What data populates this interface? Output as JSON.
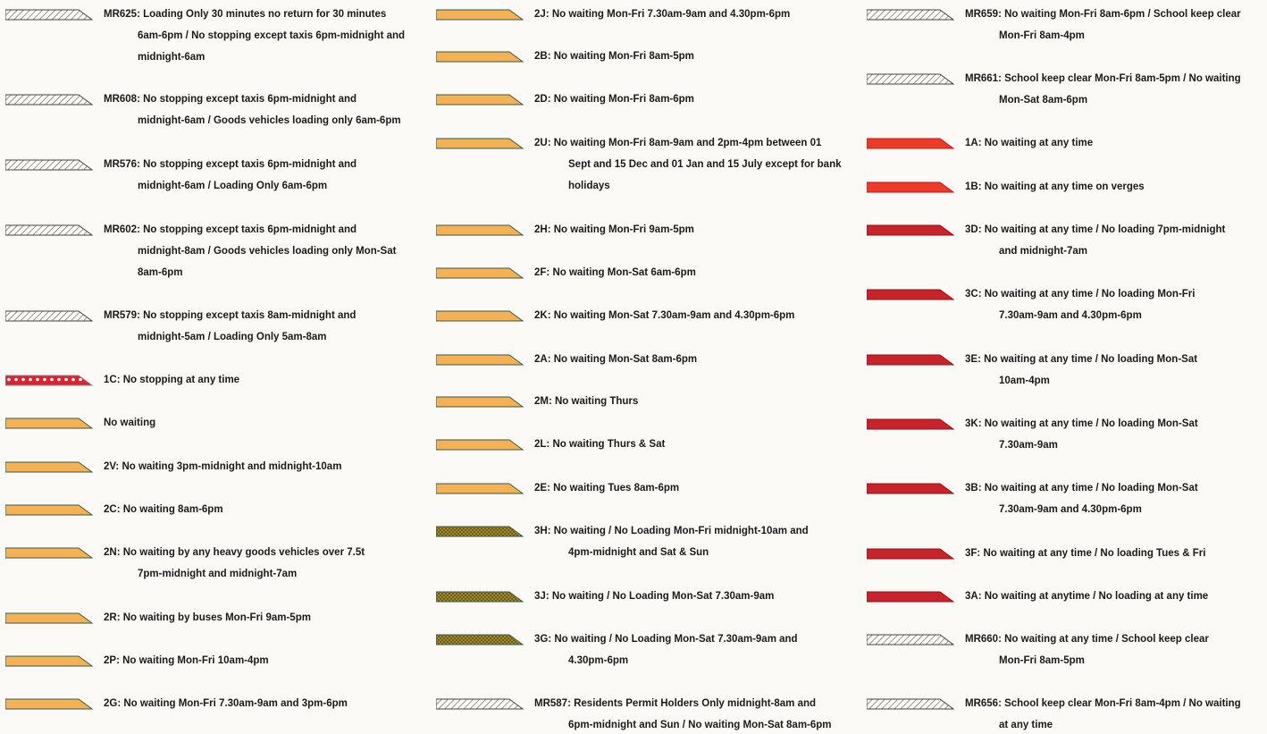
{
  "legend": {
    "columns": [
      [
        {
          "swatch": "hatch",
          "lines": [
            "MR625:  Loading Only 30 minutes no return for 30 minutes",
            "6am-6pm / No stopping except taxis 6pm-midnight and",
            "midnight-6am"
          ]
        },
        {
          "swatch": "hatch",
          "lines": [
            "MR608:  No stopping except taxis 6pm-midnight and",
            "midnight-6am / Goods vehicles loading only 6am-6pm"
          ]
        },
        {
          "swatch": "hatch",
          "lines": [
            "MR576:  No stopping except taxis 6pm-midnight and",
            "midnight-6am / Loading Only 6am-6pm"
          ]
        },
        {
          "swatch": "hatch",
          "lines": [
            "MR602:  No stopping except taxis 6pm-midnight and",
            "midnight-8am / Goods vehicles loading only Mon-Sat",
            "8am-6pm"
          ]
        },
        {
          "swatch": "hatch",
          "lines": [
            "MR579:  No stopping except taxis 8am-midnight and",
            "midnight-5am / Loading Only 5am-8am"
          ]
        },
        {
          "swatch": "dotted-red",
          "lines": [
            "1C:  No stopping at any time"
          ]
        },
        {
          "swatch": "orange",
          "lines": [
            "No waiting"
          ]
        },
        {
          "swatch": "orange",
          "lines": [
            "2V:  No waiting 3pm-midnight and midnight-10am"
          ]
        },
        {
          "swatch": "orange",
          "lines": [
            "2C:  No waiting 8am-6pm"
          ]
        },
        {
          "swatch": "orange",
          "lines": [
            "2N:  No waiting by any heavy goods vehicles over 7.5t",
            "7pm-midnight and midnight-7am"
          ]
        },
        {
          "swatch": "orange",
          "lines": [
            "2R:  No waiting by buses Mon-Fri 9am-5pm"
          ]
        },
        {
          "swatch": "orange",
          "lines": [
            "2P:  No waiting Mon-Fri 10am-4pm"
          ]
        },
        {
          "swatch": "orange",
          "lines": [
            "2G:  No waiting Mon-Fri 7.30am-9am and 3pm-6pm"
          ]
        }
      ],
      [
        {
          "swatch": "orange",
          "lines": [
            "2J:  No waiting Mon-Fri 7.30am-9am and 4.30pm-6pm"
          ]
        },
        {
          "swatch": "orange",
          "lines": [
            "2B:  No waiting Mon-Fri 8am-5pm"
          ]
        },
        {
          "swatch": "orange",
          "lines": [
            "2D:  No waiting Mon-Fri 8am-6pm"
          ]
        },
        {
          "swatch": "orange",
          "lines": [
            "2U:  No waiting Mon-Fri 8am-9am and 2pm-4pm between 01",
            "Sept and 15 Dec and 01 Jan and 15 July except for bank",
            "holidays"
          ]
        },
        {
          "swatch": "orange",
          "lines": [
            "2H:  No waiting Mon-Fri 9am-5pm"
          ]
        },
        {
          "swatch": "orange",
          "lines": [
            "2F:  No waiting Mon-Sat 6am-6pm"
          ]
        },
        {
          "swatch": "orange",
          "lines": [
            "2K:  No waiting Mon-Sat 7.30am-9am and 4.30pm-6pm"
          ]
        },
        {
          "swatch": "orange",
          "lines": [
            "2A:  No waiting Mon-Sat 8am-6pm"
          ]
        },
        {
          "swatch": "orange",
          "lines": [
            "2M:  No waiting Thurs"
          ]
        },
        {
          "swatch": "orange",
          "lines": [
            "2L:  No waiting Thurs & Sat"
          ]
        },
        {
          "swatch": "orange",
          "lines": [
            "2E:  No waiting Tues 8am-6pm"
          ]
        },
        {
          "swatch": "olive-check",
          "lines": [
            "3H:  No waiting / No Loading Mon-Fri midnight-10am and",
            "4pm-midnight and Sat & Sun"
          ]
        },
        {
          "swatch": "olive-check",
          "lines": [
            "3J:  No waiting / No Loading Mon-Sat 7.30am-9am"
          ]
        },
        {
          "swatch": "olive-check",
          "lines": [
            "3G:  No waiting / No Loading Mon-Sat 7.30am-9am and",
            "4.30pm-6pm"
          ]
        },
        {
          "swatch": "hatch",
          "lines": [
            "MR587:  Residents Permit Holders Only midnight-8am and",
            "6pm-midnight and Sun / No waiting Mon-Sat 8am-6pm"
          ]
        }
      ],
      [
        {
          "swatch": "hatch",
          "lines": [
            "MR659:  No waiting Mon-Fri 8am-6pm / School keep clear",
            "Mon-Fri 8am-4pm"
          ]
        },
        {
          "swatch": "hatch",
          "lines": [
            "MR661:  School keep clear Mon-Fri 8am-5pm / No waiting",
            "Mon-Sat 8am-6pm"
          ]
        },
        {
          "swatch": "red",
          "lines": [
            "1A:  No waiting at any time"
          ]
        },
        {
          "swatch": "red",
          "lines": [
            "1B:  No waiting at any time on verges"
          ]
        },
        {
          "swatch": "dark-red",
          "lines": [
            "3D:  No waiting at any time / No loading 7pm-midnight",
            "and midnight-7am"
          ]
        },
        {
          "swatch": "dark-red",
          "lines": [
            "3C:  No waiting at any time / No loading Mon-Fri",
            "7.30am-9am and 4.30pm-6pm"
          ]
        },
        {
          "swatch": "dark-red",
          "lines": [
            "3E:  No waiting at any time / No loading Mon-Sat",
            "10am-4pm"
          ]
        },
        {
          "swatch": "dark-red",
          "lines": [
            "3K:  No waiting at any time / No loading Mon-Sat",
            "7.30am-9am"
          ]
        },
        {
          "swatch": "dark-red",
          "lines": [
            "3B:  No waiting at any time / No loading Mon-Sat",
            "7.30am-9am and 4.30pm-6pm"
          ]
        },
        {
          "swatch": "dark-red",
          "lines": [
            "3F:  No waiting at any time / No loading Tues & Fri"
          ]
        },
        {
          "swatch": "dark-red",
          "lines": [
            "3A:  No waiting at anytime / No loading at any time"
          ]
        },
        {
          "swatch": "hatch",
          "lines": [
            "MR660:  No waiting at any time / School keep clear",
            "Mon-Fri 8am-5pm"
          ]
        },
        {
          "swatch": "hatch",
          "lines": [
            "MR656:  School keep clear Mon-Fri 8am-4pm / No waiting",
            "at any time"
          ]
        }
      ]
    ],
    "colors": {
      "orange": "#f6b153",
      "red": "#ee3a26",
      "dark-red": "#c8232b",
      "olive": "#a4892c",
      "outline": "#2f5c57",
      "hatch-stroke": "#555555",
      "dot-red": "#d8242f"
    }
  }
}
